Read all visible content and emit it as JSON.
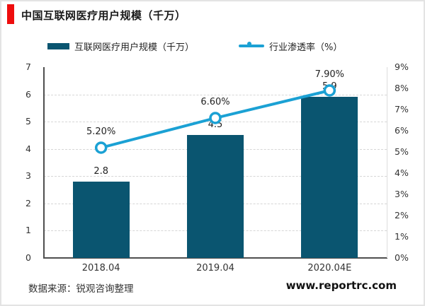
{
  "header": {
    "title": "中国互联网医疗用户规模（千万）",
    "accent_color": "#ee0d0d"
  },
  "legend": {
    "bar_label": "互联网医疗用户规模（千万）",
    "line_label": "行业渗透率（%）"
  },
  "chart_data": {
    "type": "bar+line",
    "title": "中国互联网医疗用户规模（千万）",
    "categories": [
      "2018.04",
      "2019.04",
      "2020.04E"
    ],
    "series": [
      {
        "name": "互联网医疗用户规模（千万）",
        "type": "bar",
        "axis": "left",
        "values": [
          2.8,
          4.5,
          5.9
        ],
        "labels": [
          "2.8",
          "4.5",
          "5.9"
        ],
        "color": "#0a5570"
      },
      {
        "name": "行业渗透率（%）",
        "type": "line",
        "axis": "right",
        "values": [
          5.2,
          6.6,
          7.9
        ],
        "labels": [
          "5.20%",
          "6.60%",
          "7.90%"
        ],
        "color": "#1ba1d4",
        "marker": "open-circle"
      }
    ],
    "left_axis": {
      "min": 0,
      "max": 7,
      "step": 1,
      "ticks": [
        "0",
        "1",
        "2",
        "3",
        "4",
        "5",
        "6",
        "7"
      ]
    },
    "right_axis": {
      "min": 0,
      "max": 9,
      "step": 1,
      "ticks": [
        "0%",
        "1%",
        "2%",
        "3%",
        "4%",
        "5%",
        "6%",
        "7%",
        "8%",
        "9%"
      ]
    },
    "grid": "horizontal dashed at left-axis integers 1-6",
    "legend_position": "top"
  },
  "footer": {
    "source": "数据来源：锐观咨询整理",
    "website": "www.reportrc.com"
  }
}
